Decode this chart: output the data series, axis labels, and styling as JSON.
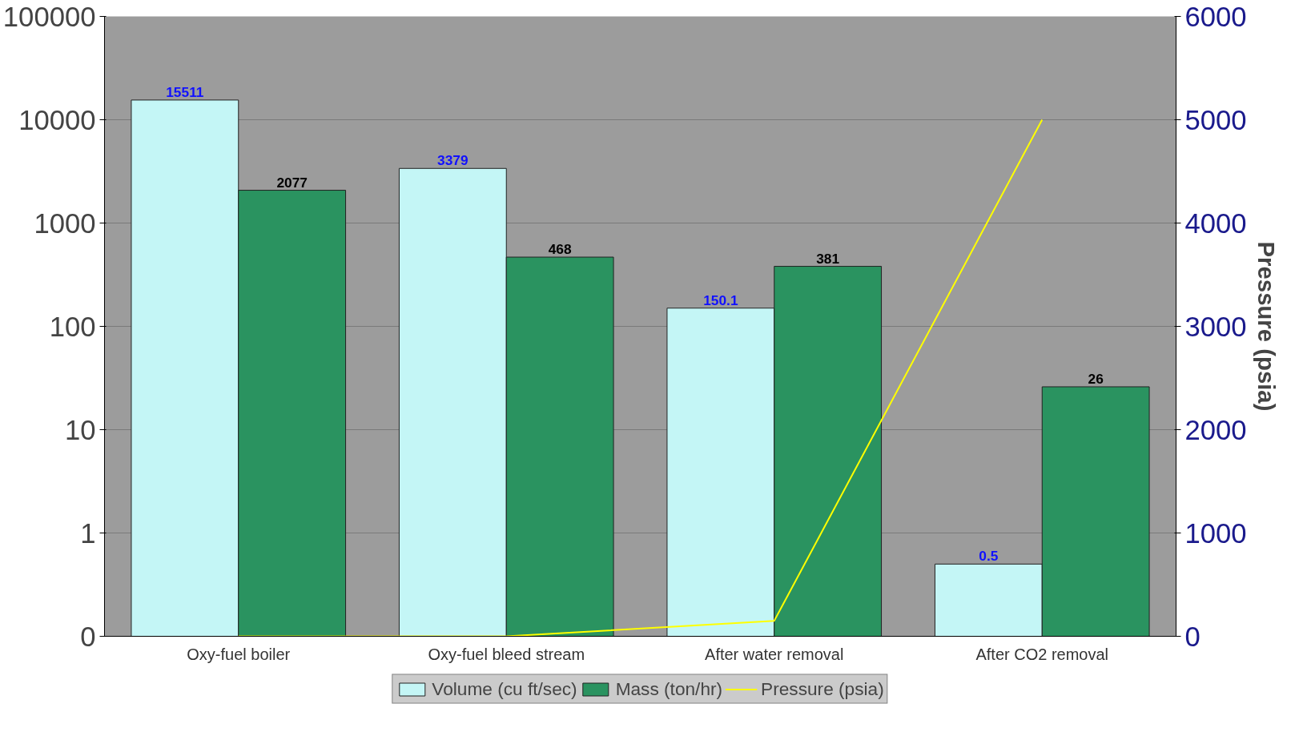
{
  "chart_data": {
    "type": "bar",
    "y2label": "Pressure (psia)",
    "log": "y",
    "categories": [
      "Oxy-fuel boiler",
      "Oxy-fuel bleed stream",
      "After water removal",
      "After CO2 removal"
    ],
    "series": [
      {
        "name": "Volume (cu ft/sec)",
        "color": "#c4f6f6",
        "values": [
          15511,
          3379,
          150.1,
          0.5
        ],
        "value_labels": [
          "15511",
          "3379",
          "150.1",
          "0.5"
        ]
      },
      {
        "name": "Mass (ton/hr)",
        "color": "#2a9360",
        "values": [
          2077,
          468,
          381,
          26
        ],
        "value_labels": [
          "2077",
          "468",
          "381",
          "26"
        ]
      },
      {
        "name": "Pressure (psia)",
        "type": "line",
        "axis": "y2",
        "color": "#ffff00",
        "values": [
          0,
          0,
          150,
          5000
        ]
      }
    ],
    "ylim": [
      0.1,
      100000
    ],
    "yticks": [
      {
        "value": 0.1,
        "label": "0"
      },
      1,
      10,
      100,
      1000,
      10000,
      100000
    ],
    "y2lim": [
      0,
      6000
    ],
    "y2ticks": [
      0,
      1000,
      2000,
      3000,
      4000,
      5000,
      6000
    ],
    "grid": "y",
    "legend": "bottom"
  }
}
